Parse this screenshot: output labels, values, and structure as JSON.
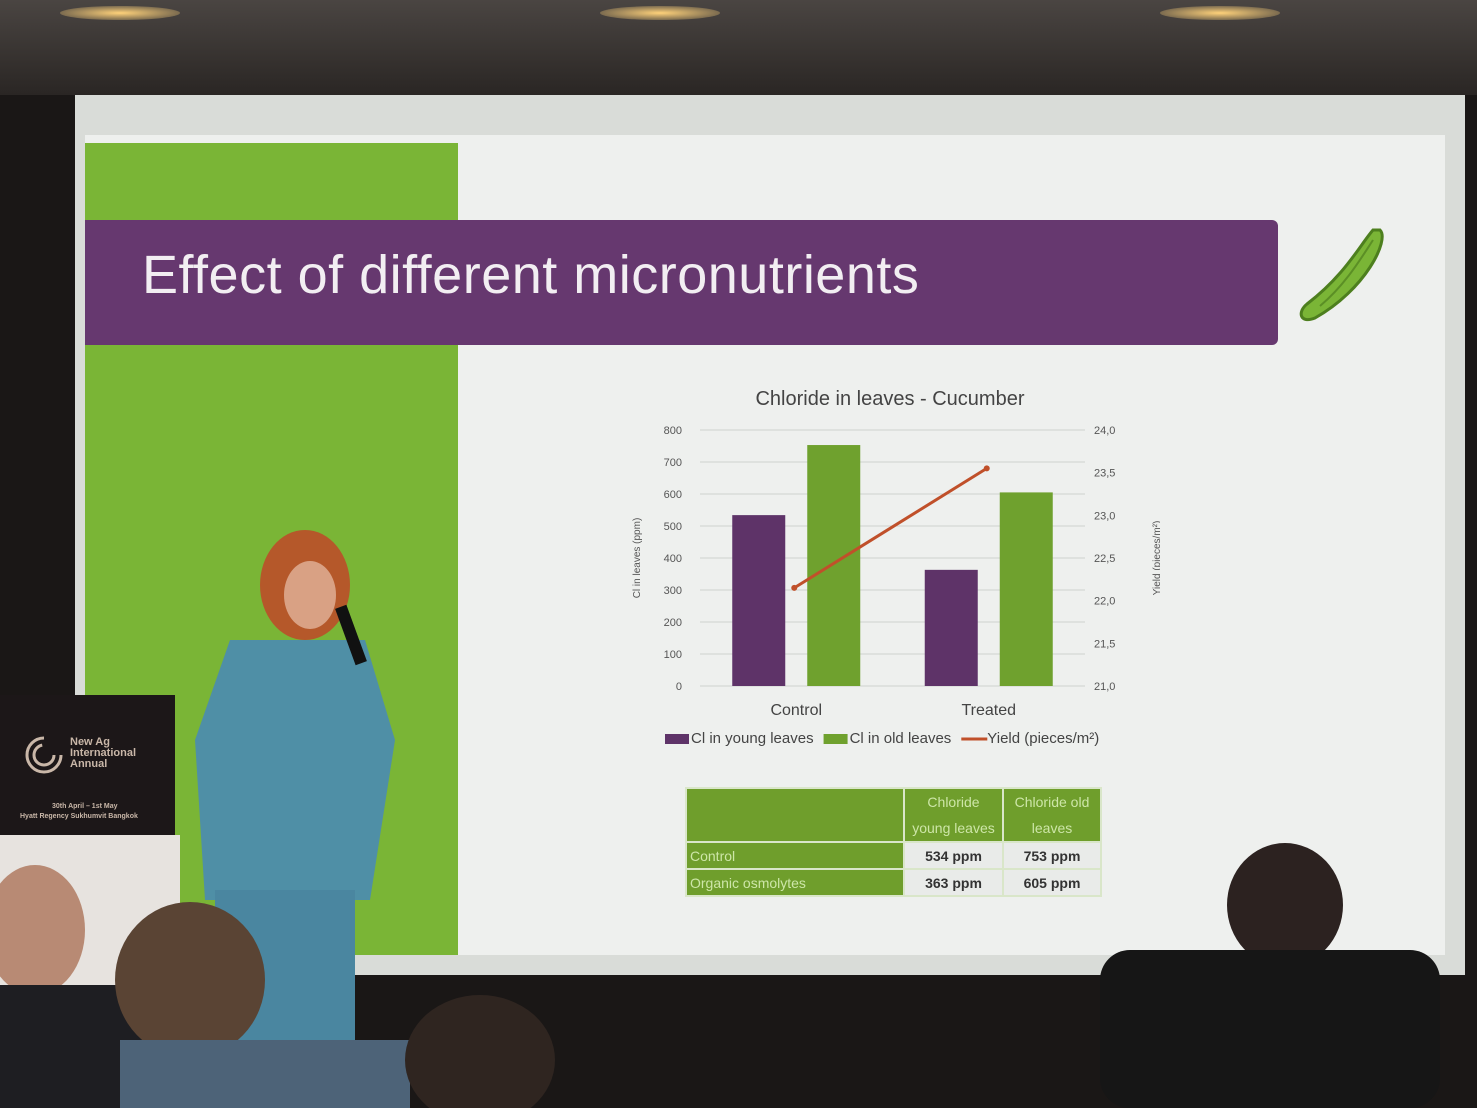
{
  "slide": {
    "title": "Effect of different micronutrients",
    "cucumber_icon": "cucumber-icon",
    "colors": {
      "green": "#7ab536",
      "purple": "#66386f",
      "line": "#c0502a"
    }
  },
  "chart_data": {
    "type": "bar",
    "title": "Chloride in leaves - Cucumber",
    "categories": [
      "Control",
      "Treated"
    ],
    "series": [
      {
        "name": "Cl in young leaves",
        "type": "bar",
        "axis": "left",
        "color": "#5e3368",
        "values": [
          534,
          363
        ]
      },
      {
        "name": "Cl in old leaves",
        "type": "bar",
        "axis": "left",
        "color": "#6fa12e",
        "values": [
          753,
          605
        ]
      },
      {
        "name": "Yield (pieces/m²)",
        "type": "line",
        "axis": "right",
        "color": "#c0502a",
        "values": [
          22.15,
          23.55
        ]
      }
    ],
    "ylabel": "Cl in leaves (ppm)",
    "ylabel_right": "Yield (pieces/m²)",
    "ylim": [
      0,
      800
    ],
    "ylim_right": [
      21.0,
      24.0
    ],
    "yticks": [
      "0",
      "100",
      "200",
      "300",
      "400",
      "500",
      "600",
      "700",
      "800"
    ],
    "yticks_right": [
      "21,0",
      "21,5",
      "22,0",
      "22,5",
      "23,0",
      "23,5",
      "24,0"
    ],
    "grid": true,
    "legend": "bottom"
  },
  "table": {
    "headers": [
      "",
      "Chloride young leaves",
      "Chloride old leaves"
    ],
    "header_lines": [
      [
        "Chloride",
        "young leaves"
      ],
      [
        "Chloride",
        "old leaves"
      ]
    ],
    "rows": [
      {
        "label": "Control",
        "young": "534 ppm",
        "old": "753 ppm"
      },
      {
        "label": "Organic osmolytes",
        "young": "363 ppm",
        "old": "605 ppm"
      }
    ]
  },
  "podium": {
    "line1": "New Ag",
    "line2": "International",
    "line3": "Annual",
    "dates": "30th April – 1st May",
    "venue": "Hyatt Regency Sukhumvit Bangkok"
  }
}
